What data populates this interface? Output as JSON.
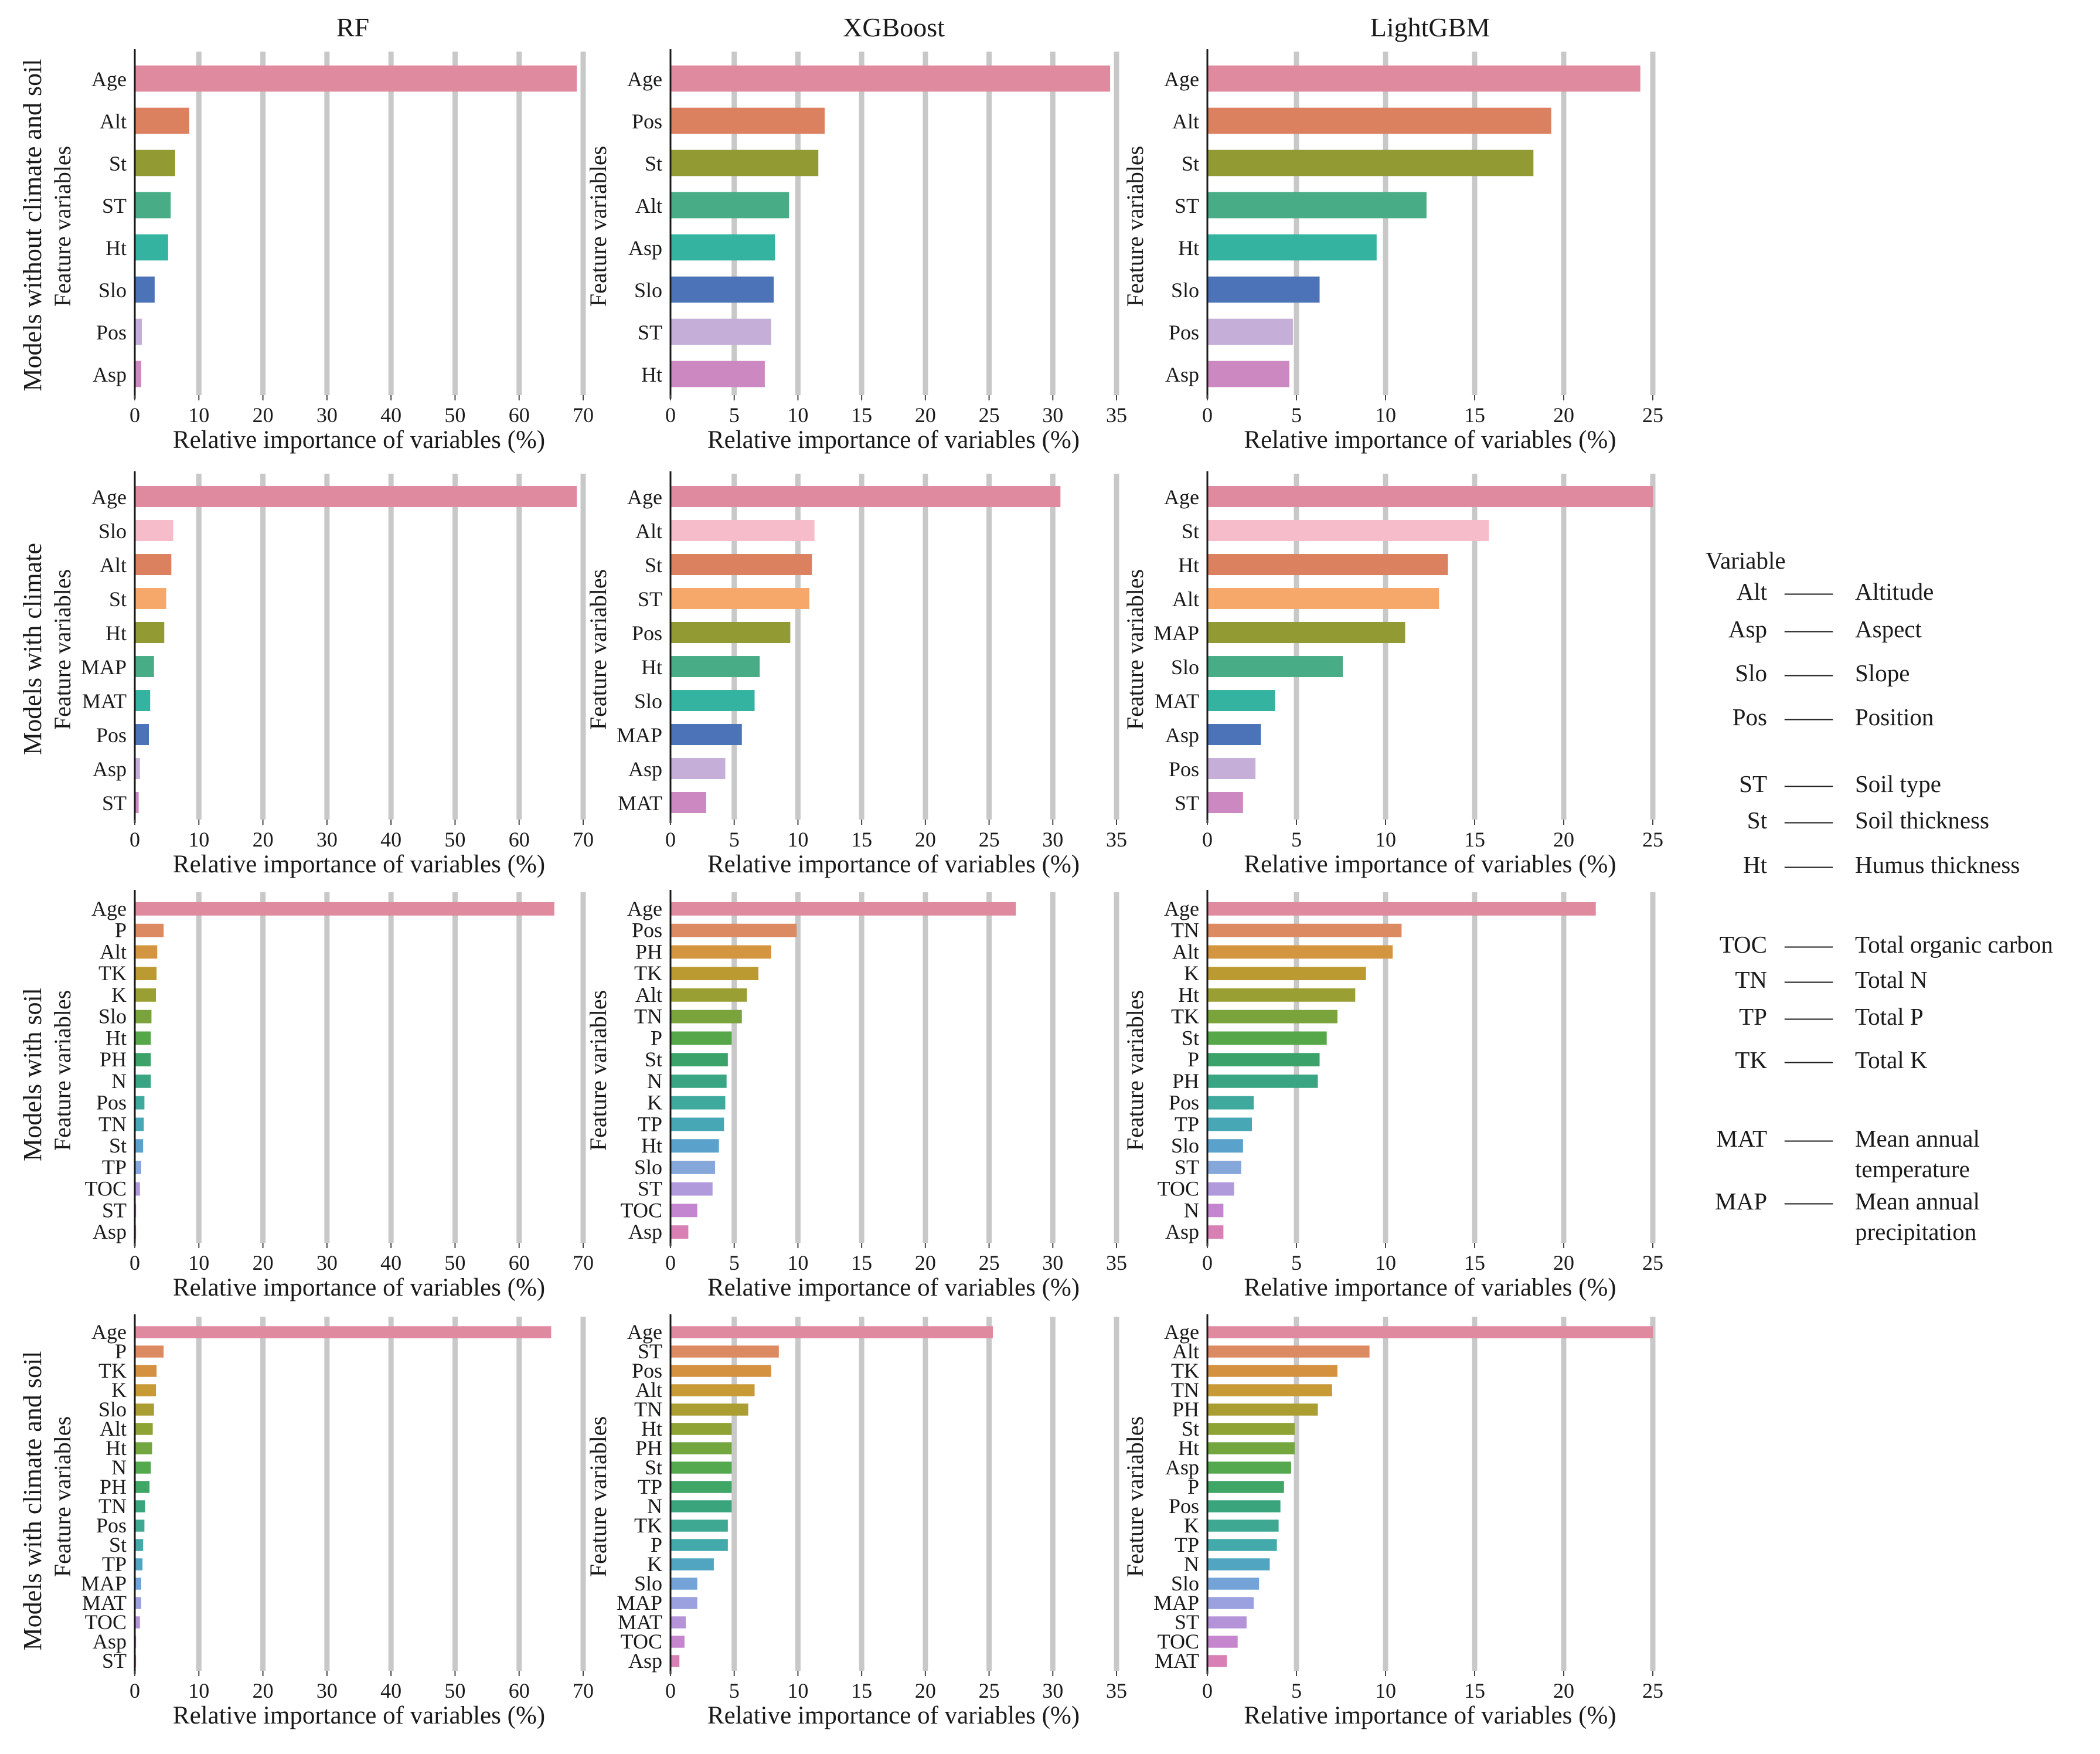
{
  "figure": {
    "column_titles": [
      "RF",
      "XGBoost",
      "LightGBM"
    ],
    "row_titles": [
      "Models without climate and soil",
      "Models with climate",
      "Models with soil",
      "Models with climate and soil"
    ],
    "y_axis_label": "Feature variables",
    "x_axis_label": "Relative importance of variables (%)",
    "gridline_color": "#c8c8c8"
  },
  "legend": {
    "title": "Variable",
    "entries": [
      {
        "code": "Alt",
        "dash": "——",
        "desc": "Altitude"
      },
      {
        "code": "Asp",
        "dash": "——",
        "desc": "Aspect"
      },
      {
        "code": "Slo",
        "dash": "——",
        "desc": "Slope"
      },
      {
        "code": "Pos",
        "dash": "——",
        "desc": "Position"
      },
      {
        "code": "ST",
        "dash": "——",
        "desc": "Soil type"
      },
      {
        "code": "St",
        "dash": "——",
        "desc": "Soil thickness"
      },
      {
        "code": "Ht",
        "dash": "——",
        "desc": "Humus thickness"
      },
      {
        "code": "TOC",
        "dash": "——",
        "desc": "Total organic carbon"
      },
      {
        "code": "TN",
        "dash": "——",
        "desc": "Total N"
      },
      {
        "code": "TP",
        "dash": "——",
        "desc": "Total P"
      },
      {
        "code": "TK",
        "dash": "——",
        "desc": "Total K"
      },
      {
        "code": "MAT",
        "dash": "——",
        "desc": "Mean annual temperature"
      },
      {
        "code": "MAP",
        "dash": "——",
        "desc": "Mean annual precipitation"
      }
    ]
  },
  "chart_data": [
    {
      "type": "bar",
      "orientation": "horizontal",
      "row": "Models without climate and soil",
      "model": "RF",
      "categories": [
        "Age",
        "Alt",
        "St",
        "ST",
        "Ht",
        "Slo",
        "Pos",
        "Asp"
      ],
      "values": [
        69,
        8.5,
        6.3,
        5.6,
        5.2,
        3.1,
        1.1,
        1.0
      ],
      "colors": [
        "#e08aa0",
        "#db8160",
        "#929a33",
        "#48ad86",
        "#35b3a1",
        "#4c72b8",
        "#c5aed8",
        "#cc88c0"
      ],
      "xlim": [
        0,
        70
      ],
      "xticks": [
        0,
        10,
        20,
        30,
        40,
        50,
        60,
        70
      ],
      "xlabel": "Relative importance of variables (%)",
      "ylabel": "Feature variables"
    },
    {
      "type": "bar",
      "orientation": "horizontal",
      "row": "Models without climate and soil",
      "model": "XGBoost",
      "categories": [
        "Age",
        "Pos",
        "St",
        "Alt",
        "Asp",
        "Slo",
        "ST",
        "Ht"
      ],
      "values": [
        34.5,
        12.1,
        11.6,
        9.3,
        8.2,
        8.1,
        7.9,
        7.4
      ],
      "colors": [
        "#e08aa0",
        "#db8160",
        "#929a33",
        "#48ad86",
        "#35b3a1",
        "#4c72b8",
        "#c5aed8",
        "#cc88c0"
      ],
      "xlim": [
        0,
        35
      ],
      "xticks": [
        0,
        5,
        10,
        15,
        20,
        25,
        30,
        35
      ],
      "xlabel": "Relative importance of variables (%)",
      "ylabel": "Feature variables"
    },
    {
      "type": "bar",
      "orientation": "horizontal",
      "row": "Models without climate and soil",
      "model": "LightGBM",
      "categories": [
        "Age",
        "Alt",
        "St",
        "ST",
        "Ht",
        "Slo",
        "Pos",
        "Asp"
      ],
      "values": [
        24.3,
        19.3,
        18.3,
        12.3,
        9.5,
        6.3,
        4.8,
        4.6
      ],
      "colors": [
        "#e08aa0",
        "#db8160",
        "#929a33",
        "#48ad86",
        "#35b3a1",
        "#4c72b8",
        "#c5aed8",
        "#cc88c0"
      ],
      "xlim": [
        0,
        25
      ],
      "xticks": [
        0,
        5,
        10,
        15,
        20,
        25
      ],
      "xlabel": "Relative importance of variables (%)",
      "ylabel": "Feature variables"
    },
    {
      "type": "bar",
      "orientation": "horizontal",
      "row": "Models with climate",
      "model": "RF",
      "categories": [
        "Age",
        "Slo",
        "Alt",
        "St",
        "Ht",
        "MAP",
        "MAT",
        "Pos",
        "Asp",
        "ST"
      ],
      "values": [
        69,
        6.0,
        5.7,
        4.9,
        4.6,
        3.0,
        2.4,
        2.2,
        0.8,
        0.6
      ],
      "colors": [
        "#e08aa0",
        "#f7bcc9",
        "#db8160",
        "#f5a86a",
        "#929a33",
        "#48ad86",
        "#35b3a1",
        "#4c72b8",
        "#c5aed8",
        "#cc88c0"
      ],
      "xlim": [
        0,
        70
      ],
      "xticks": [
        0,
        10,
        20,
        30,
        40,
        50,
        60,
        70
      ],
      "xlabel": "Relative importance of variables (%)",
      "ylabel": "Feature variables"
    },
    {
      "type": "bar",
      "orientation": "horizontal",
      "row": "Models with climate",
      "model": "XGBoost",
      "categories": [
        "Age",
        "Alt",
        "St",
        "ST",
        "Pos",
        "Ht",
        "Slo",
        "MAP",
        "Asp",
        "MAT"
      ],
      "values": [
        30.6,
        11.3,
        11.1,
        10.9,
        9.4,
        7.0,
        6.6,
        5.6,
        4.3,
        2.8
      ],
      "colors": [
        "#e08aa0",
        "#f7bcc9",
        "#db8160",
        "#f5a86a",
        "#929a33",
        "#48ad86",
        "#35b3a1",
        "#4c72b8",
        "#c5aed8",
        "#cc88c0"
      ],
      "xlim": [
        0,
        35
      ],
      "xticks": [
        0,
        5,
        10,
        15,
        20,
        25,
        30,
        35
      ],
      "xlabel": "Relative importance of variables (%)",
      "ylabel": "Feature variables"
    },
    {
      "type": "bar",
      "orientation": "horizontal",
      "row": "Models with climate",
      "model": "LightGBM",
      "categories": [
        "Age",
        "St",
        "Ht",
        "Alt",
        "MAP",
        "Slo",
        "MAT",
        "Asp",
        "Pos",
        "ST"
      ],
      "values": [
        25,
        15.8,
        13.5,
        13.0,
        11.1,
        7.6,
        3.8,
        3.0,
        2.7,
        2.0
      ],
      "colors": [
        "#e08aa0",
        "#f7bcc9",
        "#db8160",
        "#f5a86a",
        "#929a33",
        "#48ad86",
        "#35b3a1",
        "#4c72b8",
        "#c5aed8",
        "#cc88c0"
      ],
      "xlim": [
        0,
        25
      ],
      "xticks": [
        0,
        5,
        10,
        15,
        20,
        25
      ],
      "xlabel": "Relative importance of variables (%)",
      "ylabel": "Feature variables"
    },
    {
      "type": "bar",
      "orientation": "horizontal",
      "row": "Models with soil",
      "model": "RF",
      "categories": [
        "Age",
        "P",
        "Alt",
        "TK",
        "K",
        "Slo",
        "Ht",
        "PH",
        "N",
        "Pos",
        "TN",
        "St",
        "TP",
        "TOC",
        "ST",
        "Asp"
      ],
      "values": [
        65.5,
        4.5,
        3.5,
        3.4,
        3.3,
        2.6,
        2.5,
        2.5,
        2.5,
        1.5,
        1.4,
        1.3,
        1.0,
        0.8,
        0.2,
        0.2
      ],
      "colors": [
        "#e08aa0",
        "#dc8a62",
        "#d3953f",
        "#bb9a32",
        "#9a9f33",
        "#7aa33b",
        "#56a74a",
        "#3ba36a",
        "#3aa582",
        "#40a99d",
        "#48a7b5",
        "#5aa1cb",
        "#86a7da",
        "#b09adb",
        "#c485d0",
        "#d87fb3"
      ],
      "xlim": [
        0,
        70
      ],
      "xticks": [
        0,
        10,
        20,
        30,
        40,
        50,
        60,
        70
      ],
      "xlabel": "Relative importance of variables (%)",
      "ylabel": "Feature variables"
    },
    {
      "type": "bar",
      "orientation": "horizontal",
      "row": "Models with soil",
      "model": "XGBoost",
      "categories": [
        "Age",
        "Pos",
        "PH",
        "TK",
        "Alt",
        "TN",
        "P",
        "St",
        "N",
        "K",
        "TP",
        "Ht",
        "Slo",
        "ST",
        "TOC",
        "Asp"
      ],
      "values": [
        27.1,
        9.9,
        7.9,
        6.9,
        6.0,
        5.6,
        4.8,
        4.5,
        4.4,
        4.3,
        4.2,
        3.8,
        3.5,
        3.3,
        2.1,
        1.4
      ],
      "colors": [
        "#e08aa0",
        "#dc8a62",
        "#d3953f",
        "#bb9a32",
        "#9a9f33",
        "#7aa33b",
        "#56a74a",
        "#3ba36a",
        "#3aa582",
        "#40a99d",
        "#48a7b5",
        "#5aa1cb",
        "#86a7da",
        "#b09adb",
        "#c485d0",
        "#d87fb3"
      ],
      "xlim": [
        0,
        35
      ],
      "xticks": [
        0,
        5,
        10,
        15,
        20,
        25,
        30,
        35
      ],
      "xlabel": "Relative importance of variables (%)",
      "ylabel": "Feature variables"
    },
    {
      "type": "bar",
      "orientation": "horizontal",
      "row": "Models with soil",
      "model": "LightGBM",
      "categories": [
        "Age",
        "TN",
        "Alt",
        "K",
        "Ht",
        "TK",
        "St",
        "P",
        "PH",
        "Pos",
        "TP",
        "Slo",
        "ST",
        "TOC",
        "N",
        "Asp"
      ],
      "values": [
        21.8,
        10.9,
        10.4,
        8.9,
        8.3,
        7.3,
        6.7,
        6.3,
        6.2,
        2.6,
        2.5,
        2.0,
        1.9,
        1.5,
        0.9,
        0.9
      ],
      "colors": [
        "#e08aa0",
        "#dc8a62",
        "#d3953f",
        "#bb9a32",
        "#9a9f33",
        "#7aa33b",
        "#56a74a",
        "#3ba36a",
        "#3aa582",
        "#40a99d",
        "#48a7b5",
        "#5aa1cb",
        "#86a7da",
        "#b09adb",
        "#c485d0",
        "#d87fb3"
      ],
      "xlim": [
        0,
        25
      ],
      "xticks": [
        0,
        5,
        10,
        15,
        20,
        25
      ],
      "xlabel": "Relative importance of variables (%)",
      "ylabel": "Feature variables"
    },
    {
      "type": "bar",
      "orientation": "horizontal",
      "row": "Models with climate and soil",
      "model": "RF",
      "categories": [
        "Age",
        "P",
        "TK",
        "K",
        "Slo",
        "Alt",
        "Ht",
        "N",
        "PH",
        "TN",
        "Pos",
        "St",
        "TP",
        "MAP",
        "MAT",
        "TOC",
        "Asp",
        "ST"
      ],
      "values": [
        65,
        4.5,
        3.4,
        3.3,
        3.0,
        2.8,
        2.7,
        2.5,
        2.3,
        1.6,
        1.5,
        1.3,
        1.2,
        1.0,
        1.0,
        0.8,
        0.2,
        0.2
      ],
      "colors": [
        "#e08aa0",
        "#dc8a62",
        "#d49140",
        "#c89a36",
        "#aa9d32",
        "#8fa234",
        "#73a63f",
        "#54a84e",
        "#3fa666",
        "#3aa57c",
        "#3fa893",
        "#43a9aa",
        "#51a5c1",
        "#74a4d7",
        "#9aa1de",
        "#b593d9",
        "#c686cd",
        "#d880b5"
      ],
      "xlim": [
        0,
        70
      ],
      "xticks": [
        0,
        10,
        20,
        30,
        40,
        50,
        60,
        70
      ],
      "xlabel": "Relative importance of variables (%)",
      "ylabel": "Feature variables"
    },
    {
      "type": "bar",
      "orientation": "horizontal",
      "row": "Models with climate and soil",
      "model": "XGBoost",
      "categories": [
        "Age",
        "ST",
        "Pos",
        "Alt",
        "TN",
        "Ht",
        "PH",
        "St",
        "TP",
        "N",
        "TK",
        "P",
        "K",
        "Slo",
        "MAP",
        "MAT",
        "TOC",
        "Asp"
      ],
      "values": [
        25.3,
        8.5,
        7.9,
        6.6,
        6.1,
        4.8,
        4.8,
        4.8,
        4.8,
        4.8,
        4.5,
        4.5,
        3.4,
        2.1,
        2.1,
        1.2,
        1.1,
        0.7
      ],
      "colors": [
        "#e08aa0",
        "#dc8a62",
        "#d49140",
        "#c89a36",
        "#aa9d32",
        "#8fa234",
        "#73a63f",
        "#54a84e",
        "#3fa666",
        "#3aa57c",
        "#3fa893",
        "#43a9aa",
        "#51a5c1",
        "#74a4d7",
        "#9aa1de",
        "#b593d9",
        "#c686cd",
        "#d880b5"
      ],
      "xlim": [
        0,
        35
      ],
      "xticks": [
        0,
        5,
        10,
        15,
        20,
        25,
        30,
        35
      ],
      "xlabel": "Relative importance of variables (%)",
      "ylabel": "Feature variables"
    },
    {
      "type": "bar",
      "orientation": "horizontal",
      "row": "Models with climate and soil",
      "model": "LightGBM",
      "categories": [
        "Age",
        "Alt",
        "TK",
        "TN",
        "PH",
        "St",
        "Ht",
        "Asp",
        "P",
        "Pos",
        "K",
        "TP",
        "N",
        "Slo",
        "MAP",
        "ST",
        "TOC",
        "MAT"
      ],
      "values": [
        25,
        9.1,
        7.3,
        7.0,
        6.2,
        4.9,
        4.9,
        4.7,
        4.3,
        4.1,
        4.0,
        3.9,
        3.5,
        2.9,
        2.6,
        2.2,
        1.7,
        1.1
      ],
      "colors": [
        "#e08aa0",
        "#dc8a62",
        "#d49140",
        "#c89a36",
        "#aa9d32",
        "#8fa234",
        "#73a63f",
        "#54a84e",
        "#3fa666",
        "#3aa57c",
        "#3fa893",
        "#43a9aa",
        "#51a5c1",
        "#74a4d7",
        "#9aa1de",
        "#b593d9",
        "#c686cd",
        "#d880b5"
      ],
      "xlim": [
        0,
        25
      ],
      "xticks": [
        0,
        5,
        10,
        15,
        20,
        25
      ],
      "xlabel": "Relative importance of variables (%)",
      "ylabel": "Feature variables"
    }
  ]
}
